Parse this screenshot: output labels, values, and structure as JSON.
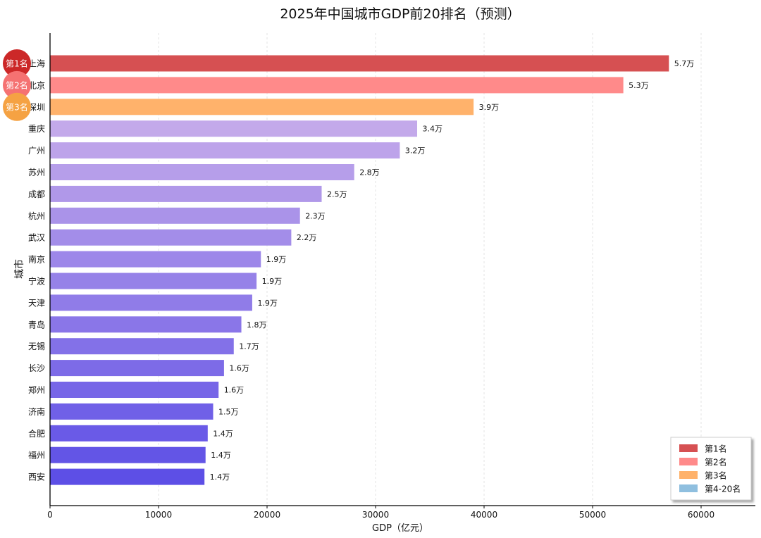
{
  "chart_data": {
    "type": "bar",
    "orientation": "horizontal",
    "title": "2025年中国城市GDP前20排名（预测）",
    "xlabel": "GDP（亿元）",
    "ylabel": "城市",
    "xlim": [
      0,
      65000
    ],
    "xticks": [
      0,
      10000,
      20000,
      30000,
      40000,
      50000,
      60000
    ],
    "grid": "x-dashed",
    "categories": [
      "上海",
      "北京",
      "深圳",
      "重庆",
      "广州",
      "苏州",
      "成都",
      "杭州",
      "武汉",
      "南京",
      "宁波",
      "天津",
      "青岛",
      "无锡",
      "长沙",
      "郑州",
      "济南",
      "合肥",
      "福州",
      "西安"
    ],
    "values": [
      57000,
      52800,
      39000,
      33800,
      32200,
      28000,
      25000,
      23000,
      22200,
      19400,
      19000,
      18600,
      17600,
      16900,
      16000,
      15500,
      15000,
      14500,
      14300,
      14200
    ],
    "value_labels": [
      "5.7万",
      "5.3万",
      "3.9万",
      "3.4万",
      "3.2万",
      "2.8万",
      "2.5万",
      "2.3万",
      "2.2万",
      "1.9万",
      "1.9万",
      "1.9万",
      "1.8万",
      "1.7万",
      "1.6万",
      "1.6万",
      "1.5万",
      "1.4万",
      "1.4万",
      "1.4万"
    ],
    "rank_badges": [
      "第1名",
      "第2名",
      "第3名"
    ],
    "legend": {
      "position": "bottom-right",
      "entries": [
        "第1名",
        "第2名",
        "第3名",
        "第4-20名"
      ]
    },
    "colors": {
      "rank1": "#d65052",
      "rank2": "#ff8a8a",
      "rank3": "#ffb26b",
      "rank4_20_legend": "#8fbfdf",
      "gradient_top": "#c3a9ea",
      "gradient_bottom": "#5d4fe6",
      "badge1": "#cc2828",
      "badge2": "#f57272",
      "badge3": "#f5a243"
    }
  }
}
